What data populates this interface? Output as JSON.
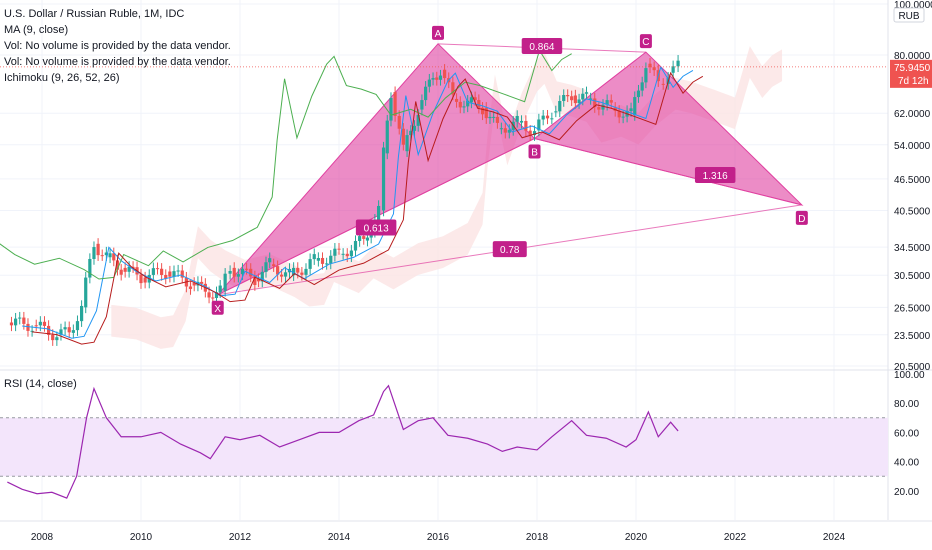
{
  "header": {
    "title": "U.S. Dollar / Russian Ruble, 1M, IDC",
    "indicators": [
      "MA (9, close)",
      "Vol: No volume is provided by the data vendor.",
      "Vol: No volume is provided by the data vendor.",
      "Ichimoku (9, 26, 52, 26)"
    ],
    "rsi_label": "RSI (14, close)"
  },
  "price_axis": {
    "currency": "RUB",
    "ticks": [
      "100.0000",
      "80.0000",
      "62.0000",
      "54.0000",
      "46.5000",
      "40.5000",
      "34.5000",
      "30.5000",
      "26.5000",
      "23.5000",
      "20.5000"
    ],
    "tick_values": [
      100,
      80,
      62,
      54,
      46.5,
      40.5,
      34.5,
      30.5,
      26.5,
      23.5,
      20.5
    ],
    "last_price": "75.9450",
    "countdown": "7d 12h"
  },
  "rsi_axis": {
    "ticks": [
      "100.00",
      "80.00",
      "60.00",
      "40.00",
      "20.00"
    ],
    "tick_values": [
      100,
      80,
      60,
      40,
      20
    ],
    "band": [
      30,
      70
    ]
  },
  "time_axis": {
    "ticks": [
      "2008",
      "2010",
      "2012",
      "2014",
      "2016",
      "2018",
      "2020",
      "2022",
      "2024"
    ],
    "tick_years": [
      2008,
      2010,
      2012,
      2014,
      2016,
      2018,
      2020,
      2022,
      2024
    ]
  },
  "colors": {
    "up": "#26a69a",
    "down": "#ef5350",
    "pattern_fill": "#e040a0",
    "pattern_label": "#c2208a",
    "rsi_line": "#9c27b0",
    "rsi_band": "#f3e5fb",
    "ichimoku_lagging": "#4caf50",
    "ichimoku_base": "#b71c1c",
    "ichimoku_cloud_red": "#fbe3e3",
    "ichimoku_cloud_green": "#e3f5e5",
    "ma": "#2196f3",
    "last_price_bg": "#ef5350"
  },
  "chart_data": {
    "type": "candlestick",
    "harmonic_pattern": {
      "points": [
        {
          "label": "X",
          "year": 2011.55,
          "price": 28.0
        },
        {
          "label": "A",
          "year": 2016.0,
          "price": 84.0
        },
        {
          "label": "B",
          "year": 2017.95,
          "price": 55.5
        },
        {
          "label": "C",
          "year": 2020.2,
          "price": 81.0
        },
        {
          "label": "D",
          "year": 2023.35,
          "price": 41.5
        }
      ],
      "ratios": [
        {
          "value": "0.613",
          "year": 2014.75,
          "price": 37.6
        },
        {
          "value": "0.864",
          "year": 2018.1,
          "price": 83.2
        },
        {
          "value": "0.78",
          "year": 2017.45,
          "price": 34.2
        },
        {
          "value": "1.316",
          "year": 2021.6,
          "price": 47.3
        }
      ]
    },
    "price_series": [
      {
        "year": 2007.3,
        "price": 24.8
      },
      {
        "year": 2007.8,
        "price": 24.5
      },
      {
        "year": 2008.3,
        "price": 23.5
      },
      {
        "year": 2008.55,
        "price": 23.7
      },
      {
        "year": 2008.8,
        "price": 26.5
      },
      {
        "year": 2009.05,
        "price": 35.0
      },
      {
        "year": 2009.3,
        "price": 33.0
      },
      {
        "year": 2009.6,
        "price": 31.5
      },
      {
        "year": 2010.0,
        "price": 30.2
      },
      {
        "year": 2010.5,
        "price": 31.0
      },
      {
        "year": 2011.0,
        "price": 29.5
      },
      {
        "year": 2011.3,
        "price": 28.3
      },
      {
        "year": 2011.6,
        "price": 28.5
      },
      {
        "year": 2011.8,
        "price": 31.5
      },
      {
        "year": 2012.3,
        "price": 30.0
      },
      {
        "year": 2012.6,
        "price": 32.0
      },
      {
        "year": 2013.0,
        "price": 30.5
      },
      {
        "year": 2013.5,
        "price": 32.5
      },
      {
        "year": 2014.0,
        "price": 33.5
      },
      {
        "year": 2014.5,
        "price": 35.5
      },
      {
        "year": 2014.8,
        "price": 40.5
      },
      {
        "year": 2014.9,
        "price": 52.0
      },
      {
        "year": 2015.05,
        "price": 68.0
      },
      {
        "year": 2015.3,
        "price": 52.5
      },
      {
        "year": 2015.6,
        "price": 63.0
      },
      {
        "year": 2015.9,
        "price": 72.5
      },
      {
        "year": 2016.05,
        "price": 75.0
      },
      {
        "year": 2016.3,
        "price": 66.0
      },
      {
        "year": 2016.6,
        "price": 65.0
      },
      {
        "year": 2016.9,
        "price": 63.5
      },
      {
        "year": 2017.2,
        "price": 58.0
      },
      {
        "year": 2017.6,
        "price": 59.5
      },
      {
        "year": 2017.95,
        "price": 57.5
      },
      {
        "year": 2018.3,
        "price": 62.5
      },
      {
        "year": 2018.7,
        "price": 67.0
      },
      {
        "year": 2019.0,
        "price": 66.0
      },
      {
        "year": 2019.5,
        "price": 63.5
      },
      {
        "year": 2019.9,
        "price": 61.5
      },
      {
        "year": 2020.2,
        "price": 77.0
      },
      {
        "year": 2020.45,
        "price": 70.5
      },
      {
        "year": 2020.65,
        "price": 74.0
      },
      {
        "year": 2020.85,
        "price": 75.9
      }
    ],
    "rsi_series": [
      {
        "year": 2007.3,
        "value": 26
      },
      {
        "year": 2007.6,
        "value": 21
      },
      {
        "year": 2007.9,
        "value": 18
      },
      {
        "year": 2008.2,
        "value": 19
      },
      {
        "year": 2008.5,
        "value": 15
      },
      {
        "year": 2008.7,
        "value": 30
      },
      {
        "year": 2008.9,
        "value": 70
      },
      {
        "year": 2009.05,
        "value": 90
      },
      {
        "year": 2009.3,
        "value": 70
      },
      {
        "year": 2009.6,
        "value": 57
      },
      {
        "year": 2010.0,
        "value": 57
      },
      {
        "year": 2010.4,
        "value": 60
      },
      {
        "year": 2010.8,
        "value": 52
      },
      {
        "year": 2011.2,
        "value": 46
      },
      {
        "year": 2011.4,
        "value": 42
      },
      {
        "year": 2011.7,
        "value": 57
      },
      {
        "year": 2012.0,
        "value": 55
      },
      {
        "year": 2012.4,
        "value": 58
      },
      {
        "year": 2012.8,
        "value": 50
      },
      {
        "year": 2013.2,
        "value": 55
      },
      {
        "year": 2013.6,
        "value": 60
      },
      {
        "year": 2014.0,
        "value": 60
      },
      {
        "year": 2014.4,
        "value": 68
      },
      {
        "year": 2014.7,
        "value": 72
      },
      {
        "year": 2014.9,
        "value": 88
      },
      {
        "year": 2015.0,
        "value": 92
      },
      {
        "year": 2015.3,
        "value": 62
      },
      {
        "year": 2015.6,
        "value": 68
      },
      {
        "year": 2015.9,
        "value": 70
      },
      {
        "year": 2016.2,
        "value": 58
      },
      {
        "year": 2016.6,
        "value": 56
      },
      {
        "year": 2017.0,
        "value": 52
      },
      {
        "year": 2017.3,
        "value": 47
      },
      {
        "year": 2017.6,
        "value": 50
      },
      {
        "year": 2018.0,
        "value": 48
      },
      {
        "year": 2018.3,
        "value": 57
      },
      {
        "year": 2018.7,
        "value": 68
      },
      {
        "year": 2019.0,
        "value": 58
      },
      {
        "year": 2019.4,
        "value": 56
      },
      {
        "year": 2019.8,
        "value": 50
      },
      {
        "year": 2020.0,
        "value": 55
      },
      {
        "year": 2020.25,
        "value": 74
      },
      {
        "year": 2020.45,
        "value": 57
      },
      {
        "year": 2020.7,
        "value": 67
      },
      {
        "year": 2020.85,
        "value": 61
      }
    ]
  }
}
